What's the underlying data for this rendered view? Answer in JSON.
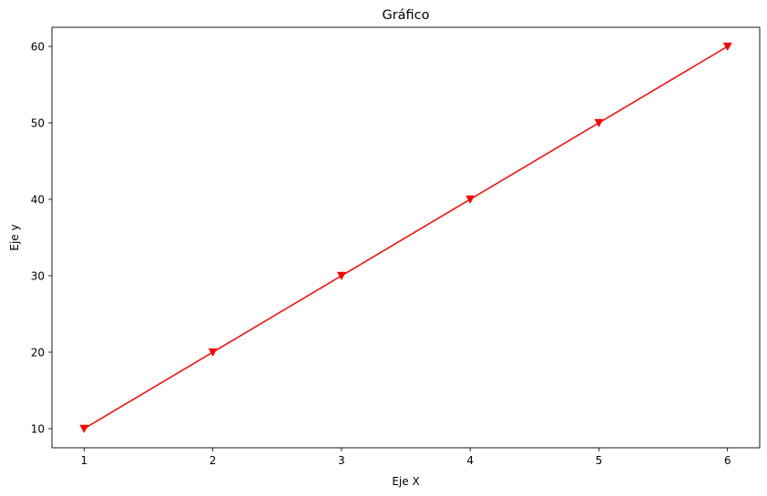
{
  "chart_data": {
    "type": "line",
    "title": "Gráfico",
    "xlabel": "Eje X",
    "ylabel": "Eje y",
    "x": [
      1,
      2,
      3,
      4,
      5,
      6
    ],
    "series": [
      {
        "values": [
          10,
          20,
          30,
          40,
          50,
          60
        ],
        "color": "#ff0000",
        "marker": "triangle-down"
      }
    ],
    "xlim": [
      0.75,
      6.25
    ],
    "ylim": [
      7.5,
      62.5
    ],
    "xticks": [
      1,
      2,
      3,
      4,
      5,
      6
    ],
    "yticks": [
      10,
      20,
      30,
      40,
      50,
      60
    ],
    "grid": false,
    "legend": "none"
  }
}
